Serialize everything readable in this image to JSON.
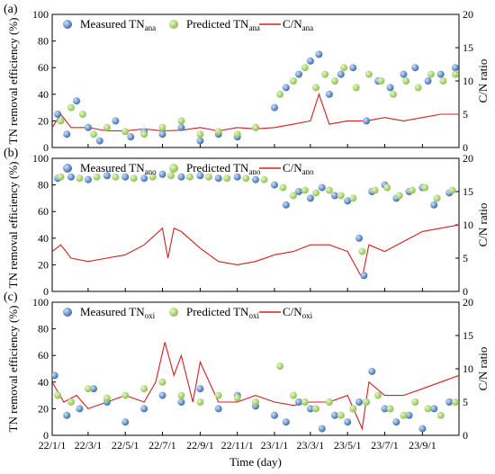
{
  "figure": {
    "xlabel": "Time (day)",
    "ylabel": "TN removal efficiency (%)",
    "y2label": "C/N ratio",
    "xticks": [
      "22/1/1",
      "22/3/1",
      "22/5/1",
      "22/7/1",
      "22/9/1",
      "22/11/1",
      "23/1/1",
      "23/3/1",
      "23/5/1",
      "23/7/1",
      "23/9/1"
    ],
    "yticks": [
      "0",
      "20",
      "40",
      "60",
      "80",
      "100"
    ],
    "y2ticks": [
      "0",
      "5",
      "10",
      "15",
      "20"
    ]
  },
  "colors": {
    "measured": "#3a6fb5",
    "predicted": "#8fc24a",
    "cn_line": "#d42020"
  },
  "chart_data": [
    {
      "type": "scatter",
      "panel_label": "(a)",
      "x_range": [
        "2022-01-01",
        "2023-10-31"
      ],
      "ylim": [
        0,
        100
      ],
      "y2lim": [
        0,
        20
      ],
      "legend": [
        {
          "main": "Measured TN",
          "sub": "ana"
        },
        {
          "main": "Predicted TN",
          "sub": "ana"
        },
        {
          "main": "C/N",
          "sub": "ana"
        }
      ],
      "series": [
        {
          "name": "Measured TNana",
          "kind": "measured",
          "x": [
            "2022-01-10",
            "2022-01-25",
            "2022-02-10",
            "2022-03-01",
            "2022-03-20",
            "2022-04-15",
            "2022-05-10",
            "2022-06-01",
            "2022-07-01",
            "2022-08-01",
            "2022-09-01",
            "2022-10-01",
            "2022-11-01",
            "2022-12-01",
            "2023-01-01",
            "2023-01-20",
            "2023-02-10",
            "2023-03-01",
            "2023-03-15",
            "2023-04-01",
            "2023-04-20",
            "2023-05-10",
            "2023-06-01",
            "2023-06-20",
            "2023-07-10",
            "2023-08-01",
            "2023-08-20",
            "2023-09-10",
            "2023-10-01",
            "2023-10-25"
          ],
          "y": [
            25,
            10,
            35,
            15,
            5,
            20,
            8,
            12,
            10,
            15,
            5,
            10,
            8,
            15,
            30,
            45,
            55,
            65,
            70,
            40,
            55,
            60,
            20,
            50,
            45,
            55,
            60,
            50,
            55,
            60
          ]
        },
        {
          "name": "Predicted TNana",
          "kind": "predicted",
          "x": [
            "2022-01-15",
            "2022-02-01",
            "2022-02-20",
            "2022-03-10",
            "2022-04-01",
            "2022-05-01",
            "2022-06-01",
            "2022-07-01",
            "2022-08-01",
            "2022-09-01",
            "2022-10-01",
            "2022-11-01",
            "2022-12-01",
            "2023-01-10",
            "2023-02-01",
            "2023-02-20",
            "2023-03-10",
            "2023-03-25",
            "2023-04-10",
            "2023-04-25",
            "2023-05-15",
            "2023-06-05",
            "2023-06-25",
            "2023-07-15",
            "2023-08-05",
            "2023-08-25",
            "2023-09-15",
            "2023-10-05",
            "2023-10-25"
          ],
          "y": [
            20,
            30,
            25,
            10,
            15,
            12,
            10,
            15,
            20,
            10,
            12,
            10,
            15,
            40,
            50,
            60,
            45,
            55,
            50,
            60,
            45,
            55,
            50,
            40,
            50,
            45,
            55,
            50,
            55
          ]
        },
        {
          "name": "C/Nana",
          "kind": "cn",
          "x": [
            "2022-01-01",
            "2022-01-15",
            "2022-02-01",
            "2022-03-01",
            "2022-04-01",
            "2022-05-01",
            "2022-06-01",
            "2022-07-01",
            "2022-08-01",
            "2022-09-01",
            "2022-10-01",
            "2022-11-01",
            "2022-12-01",
            "2023-01-01",
            "2023-02-01",
            "2023-03-01",
            "2023-03-15",
            "2023-04-01",
            "2023-05-01",
            "2023-06-01",
            "2023-07-01",
            "2023-08-01",
            "2023-09-01",
            "2023-10-01",
            "2023-10-31"
          ],
          "y": [
            3,
            5,
            3,
            3,
            2.5,
            2.5,
            2.8,
            2.5,
            2.6,
            3,
            2.5,
            3,
            2.8,
            3,
            3.5,
            4,
            8,
            3.5,
            4,
            4,
            4.5,
            4,
            4.5,
            5,
            5
          ]
        }
      ]
    },
    {
      "type": "scatter",
      "panel_label": "(b)",
      "x_range": [
        "2022-01-01",
        "2023-10-31"
      ],
      "ylim": [
        0,
        100
      ],
      "y2lim": [
        0,
        20
      ],
      "legend": [
        {
          "main": "Measured TN",
          "sub": "ano"
        },
        {
          "main": "Predicted TN",
          "sub": "ano"
        },
        {
          "main": "C/N",
          "sub": "ano"
        }
      ],
      "series": [
        {
          "name": "Measured TNano",
          "kind": "measured",
          "x": [
            "2022-01-10",
            "2022-02-01",
            "2022-03-01",
            "2022-04-01",
            "2022-05-01",
            "2022-06-01",
            "2022-07-01",
            "2022-08-01",
            "2022-09-01",
            "2022-10-01",
            "2022-11-01",
            "2022-12-01",
            "2023-01-01",
            "2023-01-20",
            "2023-02-10",
            "2023-03-01",
            "2023-03-20",
            "2023-04-10",
            "2023-05-01",
            "2023-05-20",
            "2023-05-28",
            "2023-06-10",
            "2023-07-01",
            "2023-07-20",
            "2023-08-10",
            "2023-09-01",
            "2023-09-20",
            "2023-10-15"
          ],
          "y": [
            85,
            86,
            84,
            87,
            86,
            85,
            88,
            86,
            87,
            85,
            86,
            84,
            80,
            65,
            75,
            70,
            78,
            72,
            68,
            40,
            12,
            75,
            80,
            70,
            75,
            78,
            65,
            74
          ]
        },
        {
          "name": "Predicted TNano",
          "kind": "predicted",
          "x": [
            "2022-01-15",
            "2022-02-15",
            "2022-03-15",
            "2022-04-15",
            "2022-05-15",
            "2022-06-15",
            "2022-07-15",
            "2022-08-15",
            "2022-09-15",
            "2022-10-15",
            "2022-11-15",
            "2022-12-15",
            "2023-01-15",
            "2023-02-01",
            "2023-02-20",
            "2023-03-10",
            "2023-04-01",
            "2023-04-20",
            "2023-05-10",
            "2023-05-25",
            "2023-06-15",
            "2023-07-05",
            "2023-07-25",
            "2023-08-15",
            "2023-09-05",
            "2023-09-25",
            "2023-10-20"
          ],
          "y": [
            86,
            85,
            86,
            86,
            85,
            86,
            87,
            86,
            86,
            85,
            85,
            84,
            78,
            72,
            76,
            74,
            76,
            72,
            70,
            30,
            76,
            78,
            72,
            76,
            78,
            70,
            76
          ]
        },
        {
          "name": "C/Nano",
          "kind": "cn",
          "x": [
            "2022-01-01",
            "2022-01-15",
            "2022-02-01",
            "2022-03-01",
            "2022-04-01",
            "2022-05-01",
            "2022-06-01",
            "2022-07-01",
            "2022-07-10",
            "2022-07-20",
            "2022-08-01",
            "2022-09-01",
            "2022-10-01",
            "2022-11-01",
            "2022-12-01",
            "2023-01-01",
            "2023-02-01",
            "2023-03-01",
            "2023-04-01",
            "2023-05-01",
            "2023-05-25",
            "2023-06-05",
            "2023-07-01",
            "2023-08-01",
            "2023-09-01",
            "2023-10-01",
            "2023-10-31"
          ],
          "y": [
            6,
            7,
            5,
            4.5,
            5,
            5.5,
            7,
            9.5,
            5,
            9.5,
            9,
            6.5,
            4.5,
            4,
            4.5,
            5.5,
            6,
            7,
            7,
            6,
            2,
            7,
            6,
            7.5,
            9,
            9.5,
            10
          ]
        }
      ]
    },
    {
      "type": "scatter",
      "panel_label": "(c)",
      "x_range": [
        "2022-01-01",
        "2023-10-31"
      ],
      "ylim": [
        0,
        100
      ],
      "y2lim": [
        0,
        20
      ],
      "legend": [
        {
          "main": "Measured TN",
          "sub": "oxi"
        },
        {
          "main": "Predicted TN",
          "sub": "oxi"
        },
        {
          "main": "C/N",
          "sub": "oxi"
        }
      ],
      "series": [
        {
          "name": "Measured TNoxi",
          "kind": "measured",
          "x": [
            "2022-01-05",
            "2022-01-25",
            "2022-02-15",
            "2022-03-10",
            "2022-04-01",
            "2022-05-01",
            "2022-06-01",
            "2022-07-01",
            "2022-08-01",
            "2022-09-01",
            "2022-10-01",
            "2022-11-01",
            "2022-12-01",
            "2023-01-01",
            "2023-01-20",
            "2023-02-10",
            "2023-03-01",
            "2023-03-20",
            "2023-04-10",
            "2023-05-01",
            "2023-05-20",
            "2023-06-10",
            "2023-07-01",
            "2023-07-20",
            "2023-08-10",
            "2023-09-01",
            "2023-09-20",
            "2023-10-15"
          ],
          "y": [
            45,
            15,
            20,
            35,
            25,
            10,
            20,
            30,
            25,
            35,
            20,
            30,
            22,
            15,
            10,
            25,
            20,
            5,
            15,
            10,
            25,
            48,
            20,
            10,
            15,
            5,
            20,
            25
          ]
        },
        {
          "name": "Predicted TNoxi",
          "kind": "predicted",
          "x": [
            "2022-01-10",
            "2022-02-01",
            "2022-03-01",
            "2022-04-01",
            "2022-05-01",
            "2022-06-01",
            "2022-07-01",
            "2022-08-01",
            "2022-09-01",
            "2022-10-01",
            "2022-11-01",
            "2022-12-01",
            "2023-01-10",
            "2023-02-01",
            "2023-02-20",
            "2023-03-10",
            "2023-04-01",
            "2023-04-20",
            "2023-05-10",
            "2023-06-01",
            "2023-06-20",
            "2023-07-10",
            "2023-08-01",
            "2023-08-20",
            "2023-09-10",
            "2023-10-01",
            "2023-10-25"
          ],
          "y": [
            30,
            25,
            35,
            28,
            30,
            35,
            40,
            30,
            25,
            30,
            28,
            25,
            52,
            30,
            25,
            20,
            25,
            15,
            20,
            25,
            30,
            20,
            15,
            25,
            20,
            15,
            25
          ]
        },
        {
          "name": "C/Noxi",
          "kind": "cn",
          "x": [
            "2022-01-01",
            "2022-01-20",
            "2022-02-10",
            "2022-03-01",
            "2022-04-01",
            "2022-05-01",
            "2022-06-01",
            "2022-06-20",
            "2022-07-05",
            "2022-07-20",
            "2022-08-01",
            "2022-08-20",
            "2022-09-01",
            "2022-10-01",
            "2022-11-01",
            "2022-12-01",
            "2023-01-01",
            "2023-02-01",
            "2023-03-01",
            "2023-04-01",
            "2023-05-01",
            "2023-05-25",
            "2023-06-05",
            "2023-07-01",
            "2023-08-01",
            "2023-09-01",
            "2023-10-01",
            "2023-10-31"
          ],
          "y": [
            8,
            5,
            6,
            4,
            5,
            6,
            5,
            8,
            14,
            9,
            12,
            5,
            11,
            5,
            5,
            6,
            5,
            4.5,
            5,
            5,
            6,
            1,
            8,
            6,
            6,
            7,
            8,
            9
          ]
        }
      ]
    }
  ]
}
